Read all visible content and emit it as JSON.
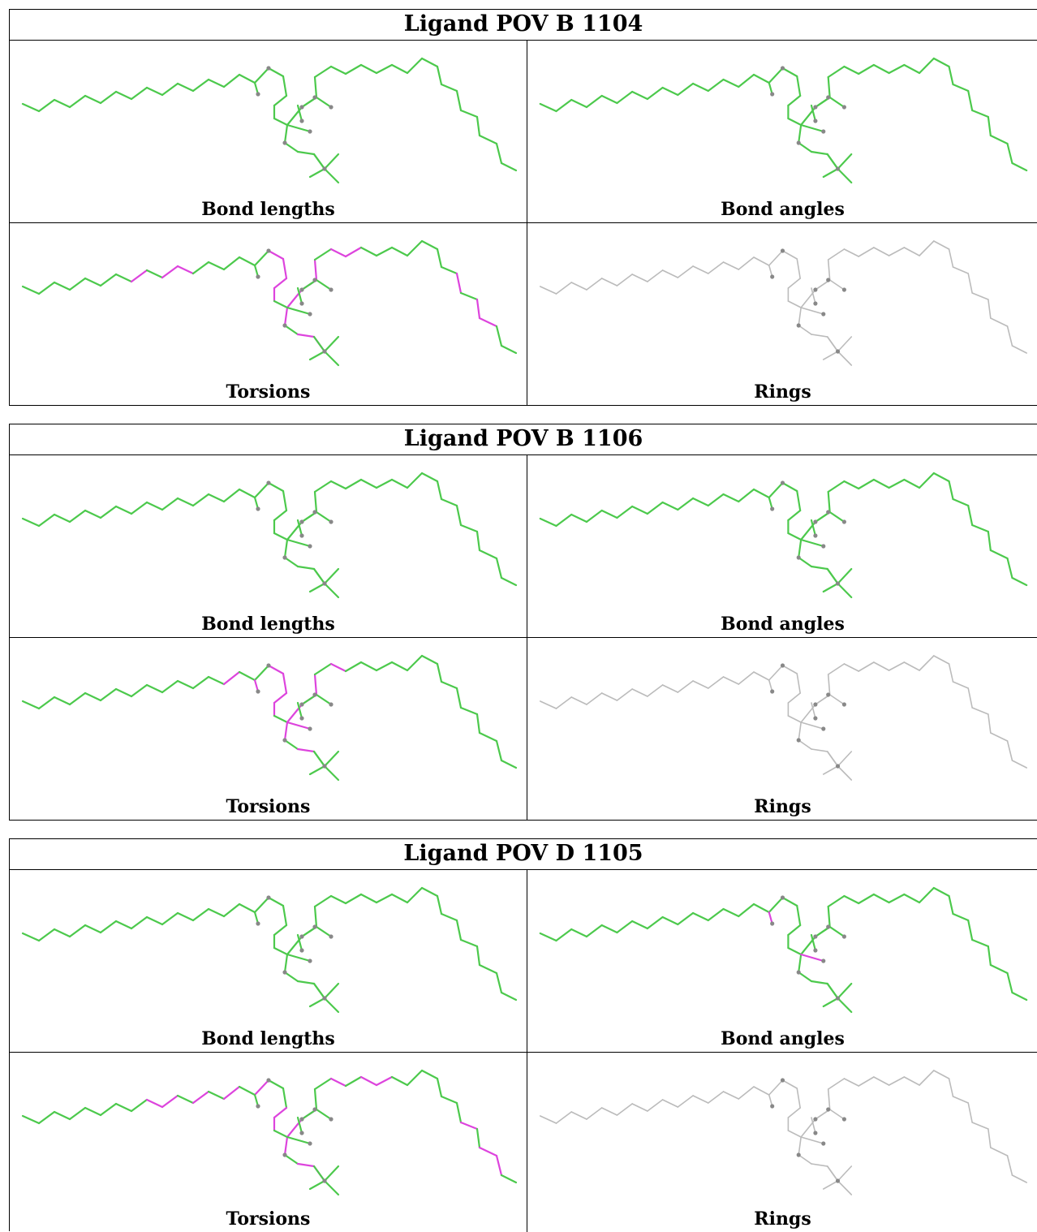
{
  "blocks": [
    {
      "title": "Ligand POV B 1104",
      "panels": [
        {
          "caption": "Bond lengths",
          "highlight": "none",
          "faded": false
        },
        {
          "caption": "Bond angles",
          "highlight": "none",
          "faded": false
        },
        {
          "caption": "Torsions",
          "highlight": "torsions_a",
          "faded": false
        },
        {
          "caption": "Rings",
          "highlight": "none",
          "faded": true
        }
      ]
    },
    {
      "title": "Ligand POV B 1106",
      "panels": [
        {
          "caption": "Bond lengths",
          "highlight": "none",
          "faded": false
        },
        {
          "caption": "Bond angles",
          "highlight": "none",
          "faded": false
        },
        {
          "caption": "Torsions",
          "highlight": "torsions_b",
          "faded": false
        },
        {
          "caption": "Rings",
          "highlight": "none",
          "faded": true
        }
      ]
    },
    {
      "title": "Ligand POV D 1105",
      "panels": [
        {
          "caption": "Bond lengths",
          "highlight": "none",
          "faded": false
        },
        {
          "caption": "Bond angles",
          "highlight": "angles_c",
          "faded": false
        },
        {
          "caption": "Torsions",
          "highlight": "torsions_c",
          "faded": false
        },
        {
          "caption": "Rings",
          "highlight": "none",
          "faded": true
        }
      ]
    }
  ],
  "colors": {
    "ok": "#4cc94c",
    "outlier": "#dd44dd",
    "neutral": "#bbbbbb",
    "atom": "#888888",
    "border": "#000000"
  }
}
